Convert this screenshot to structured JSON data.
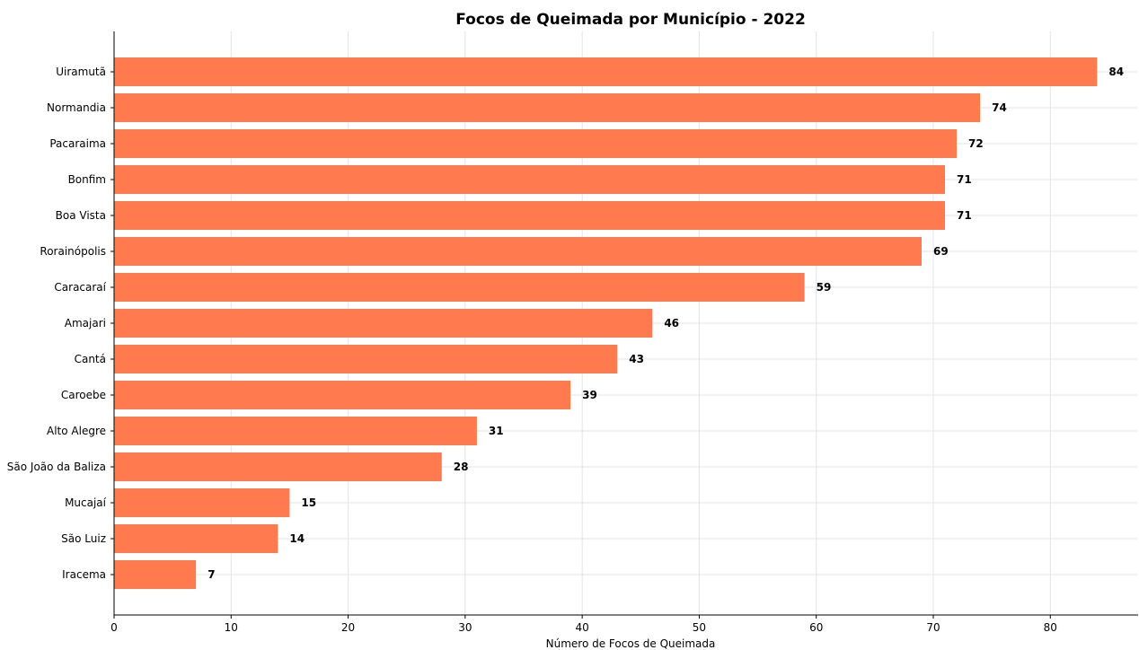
{
  "chart_data": {
    "type": "bar",
    "orientation": "horizontal",
    "title": "Focos de Queimada por Município - 2022",
    "xlabel": "Número de Focos de Queimada",
    "ylabel": "",
    "categories": [
      "Uiramutã",
      "Normandia",
      "Pacaraima",
      "Bonfim",
      "Boa Vista",
      "Rorainópolis",
      "Caracaraí",
      "Amajari",
      "Cantá",
      "Caroebe",
      "Alto Alegre",
      "São João da Baliza",
      "Mucajaí",
      "São Luiz",
      "Iracema"
    ],
    "values": [
      84,
      74,
      72,
      71,
      71,
      69,
      59,
      46,
      43,
      39,
      31,
      28,
      15,
      14,
      7
    ],
    "xlim": [
      0,
      87.5
    ],
    "xticks": [
      0,
      10,
      20,
      30,
      40,
      50,
      60,
      70,
      80
    ],
    "grid": true,
    "bar_color": "#ff7a4f",
    "show_value_labels": true
  }
}
